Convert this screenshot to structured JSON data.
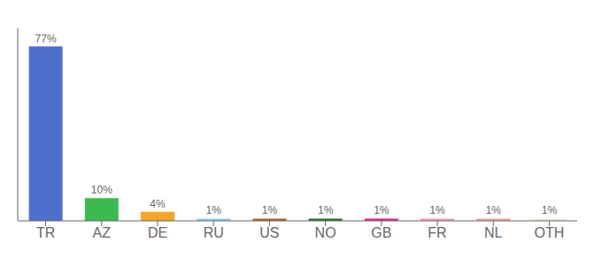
{
  "chart_data": {
    "type": "bar",
    "categories": [
      "TR",
      "AZ",
      "DE",
      "RU",
      "US",
      "NO",
      "GB",
      "FR",
      "NL",
      "OTH"
    ],
    "values": [
      77,
      10,
      4,
      1,
      1,
      1,
      1,
      1,
      1,
      1
    ],
    "value_labels": [
      "77%",
      "10%",
      "4%",
      "1%",
      "1%",
      "1%",
      "1%",
      "1%",
      "1%",
      "1%"
    ],
    "colors": [
      "#4f6fcd",
      "#3dba4e",
      "#f5a623",
      "#89d4e8",
      "#b05f2c",
      "#2a6e2a",
      "#e91e8c",
      "#f4a0b8",
      "#e8a898",
      "#f0edd8"
    ],
    "ylim": [
      0,
      85
    ],
    "data_labels": true,
    "tick_labels": "x",
    "grid": false
  }
}
